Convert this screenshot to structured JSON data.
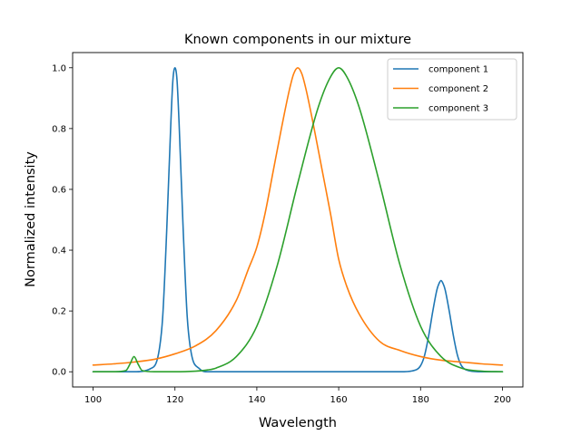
{
  "chart_data": {
    "type": "line",
    "title": "Known components in our mixture",
    "xlabel": "Wavelength",
    "ylabel": "Normalized intensity",
    "xlim": [
      95,
      205
    ],
    "ylim": [
      -0.05,
      1.05
    ],
    "xticks": [
      100,
      120,
      140,
      160,
      180,
      200
    ],
    "xtick_labels": [
      "100",
      "120",
      "140",
      "160",
      "180",
      "200"
    ],
    "yticks": [
      0.0,
      0.2,
      0.4,
      0.6,
      0.8,
      1.0
    ],
    "ytick_labels": [
      "0.0",
      "0.2",
      "0.4",
      "0.6",
      "0.8",
      "1.0"
    ],
    "grid": false,
    "legend_position": "top-right",
    "series": [
      {
        "name": "component 1",
        "color": "#1f77b4",
        "x": [
          100,
          110,
          114,
          116,
          117,
          118,
          119,
          119.5,
          120,
          120.5,
          121,
          122,
          123,
          124,
          126,
          128,
          130,
          140,
          150,
          160,
          170,
          175,
          178,
          180,
          181,
          182,
          183,
          184,
          184.5,
          185,
          185.5,
          186,
          187,
          188,
          189,
          190,
          192,
          195,
          200
        ],
        "y": [
          0,
          0,
          0.01,
          0.06,
          0.18,
          0.47,
          0.82,
          0.96,
          1.0,
          0.96,
          0.82,
          0.47,
          0.18,
          0.06,
          0.01,
          0,
          0,
          0,
          0,
          0,
          0,
          0,
          0.003,
          0.02,
          0.055,
          0.12,
          0.2,
          0.27,
          0.29,
          0.3,
          0.29,
          0.27,
          0.2,
          0.12,
          0.055,
          0.02,
          0.003,
          0,
          0
        ]
      },
      {
        "name": "component 2",
        "color": "#ff7f0e",
        "x": [
          100,
          105,
          110,
          115,
          120,
          125,
          130,
          135,
          138,
          140,
          142,
          144,
          146,
          148,
          149,
          150,
          151,
          152,
          154,
          156,
          158,
          160,
          162,
          165,
          170,
          175,
          180,
          185,
          190,
          195,
          200
        ],
        "y": [
          0.022,
          0.026,
          0.032,
          0.041,
          0.059,
          0.085,
          0.135,
          0.235,
          0.34,
          0.41,
          0.52,
          0.66,
          0.8,
          0.93,
          0.98,
          1.0,
          0.98,
          0.93,
          0.8,
          0.66,
          0.52,
          0.37,
          0.28,
          0.19,
          0.1,
          0.07,
          0.05,
          0.038,
          0.032,
          0.026,
          0.022
        ]
      },
      {
        "name": "component 3",
        "color": "#2ca02c",
        "x": [
          100,
          105,
          108,
          109,
          110,
          111,
          112,
          115,
          120,
          125,
          128,
          130,
          135,
          140,
          145,
          150,
          155,
          158,
          160,
          162,
          165,
          170,
          175,
          180,
          185,
          190,
          195,
          200
        ],
        "y": [
          0,
          0,
          0.004,
          0.025,
          0.05,
          0.025,
          0.004,
          0,
          0,
          0.002,
          0.006,
          0.012,
          0.05,
          0.15,
          0.35,
          0.62,
          0.87,
          0.97,
          1.0,
          0.97,
          0.87,
          0.62,
          0.35,
          0.15,
          0.05,
          0.012,
          0.002,
          0
        ]
      }
    ]
  }
}
